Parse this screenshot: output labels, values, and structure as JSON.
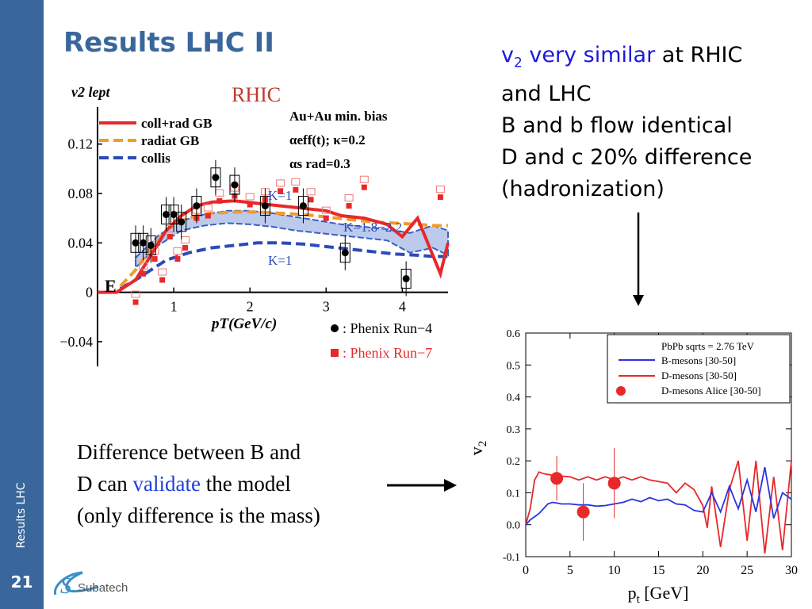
{
  "sidebar": {
    "section_label": "Results LHC",
    "page_number": "21"
  },
  "title": "Results LHC II",
  "logo": {
    "text": "Subatech",
    "mark": "S"
  },
  "notes": {
    "v": "v",
    "v_sub": "2",
    "very_similar": "very similar",
    "rest1": "at RHIC",
    "line2": "and LHC",
    "line3": "B and b flow identical",
    "line4": "D and c 20% difference",
    "line5": "(hadronization)"
  },
  "caption": {
    "line1": "Difference between B and",
    "line2_pre": "D can",
    "line2_blue": "validate",
    "line2_post": "the model",
    "line3": "(only difference is the mass)"
  },
  "colors": {
    "sidebar": "#3a679b",
    "title": "#3a679b",
    "highlight_blue": "#1a1adb",
    "red": "#e8282a",
    "orange": "#f39a2c",
    "dark_blue": "#2b4bb8"
  },
  "chart_data": [
    {
      "type": "line",
      "panel_tag": "RHIC",
      "panel_letter": "E",
      "ylabel": "v2 lept",
      "xlabel": "pT(GeV/c)",
      "xticks": [
        "1",
        "2",
        "3",
        "4"
      ],
      "yticks": [
        "0",
        "0.04",
        "0.08",
        "0.12",
        "−0.04"
      ],
      "xlim": [
        0,
        4.6
      ],
      "ylim": [
        -0.06,
        0.15
      ],
      "legend": {
        "lines": [
          "coll+rad GB",
          "radiat GB",
          "collis"
        ],
        "params": [
          "Au+Au min. bias",
          "αeff(t); κ=0.2",
          "αs rad=0.3"
        ],
        "markers": [
          ": Phenix Run−4",
          ": Phenix Run−7"
        ]
      },
      "annotations": [
        "K=1",
        "K=1.8−2.2",
        "K=1"
      ],
      "series": [
        {
          "name": "coll+rad GB",
          "color": "#e8282a",
          "x": [
            0,
            0.25,
            0.5,
            0.7,
            0.9,
            1.1,
            1.3,
            1.5,
            1.8,
            2.1,
            2.4,
            2.7,
            3.0,
            3.2,
            3.5,
            3.8,
            4.0,
            4.2,
            4.4,
            4.5,
            4.6
          ],
          "y": [
            0,
            0,
            0.01,
            0.03,
            0.05,
            0.062,
            0.07,
            0.073,
            0.074,
            0.072,
            0.07,
            0.068,
            0.066,
            0.062,
            0.06,
            0.055,
            0.045,
            0.06,
            0.03,
            0.015,
            0.04
          ]
        },
        {
          "name": "radiat GB",
          "color": "#f39a2c",
          "x": [
            0.3,
            0.5,
            0.7,
            0.9,
            1.1,
            1.3,
            1.5,
            1.8,
            2.1,
            2.4,
            2.7,
            3.0,
            3.3,
            3.6,
            3.9,
            4.2,
            4.4,
            4.6
          ],
          "y": [
            0.005,
            0.018,
            0.035,
            0.05,
            0.058,
            0.062,
            0.064,
            0.065,
            0.065,
            0.064,
            0.063,
            0.061,
            0.059,
            0.057,
            0.056,
            0.055,
            0.054,
            0.054
          ]
        },
        {
          "name": "collis",
          "color": "#2b4bb8",
          "x": [
            0.3,
            0.5,
            0.7,
            0.9,
            1.2,
            1.5,
            1.8,
            2.1,
            2.4,
            2.7,
            3.0,
            3.3,
            3.6,
            3.9,
            4.2,
            4.4,
            4.6
          ],
          "y": [
            0.003,
            0.01,
            0.018,
            0.026,
            0.032,
            0.036,
            0.038,
            0.04,
            0.04,
            0.039,
            0.037,
            0.035,
            0.033,
            0.031,
            0.03,
            0.029,
            0.029
          ]
        },
        {
          "name": "K=1.8−2.2 band",
          "color": "#3c5fc4",
          "x": [
            0.5,
            0.8,
            1.1,
            1.4,
            1.7,
            2.0,
            2.3,
            2.6,
            2.9,
            3.2,
            3.5,
            3.8,
            4.1,
            4.4,
            4.6
          ],
          "y_low": [
            0.02,
            0.038,
            0.05,
            0.054,
            0.056,
            0.055,
            0.053,
            0.05,
            0.048,
            0.046,
            0.044,
            0.042,
            0.032,
            0.036,
            0.03
          ],
          "y_high": [
            0.028,
            0.046,
            0.058,
            0.063,
            0.066,
            0.066,
            0.064,
            0.061,
            0.058,
            0.055,
            0.053,
            0.051,
            0.048,
            0.054,
            0.05
          ]
        },
        {
          "name": "Phenix Run-4",
          "color": "#000000",
          "x": [
            0.5,
            0.6,
            0.7,
            0.9,
            1.0,
            1.1,
            1.3,
            1.55,
            1.8,
            2.2,
            2.7,
            3.25,
            4.05
          ],
          "y": [
            0.04,
            0.04,
            0.038,
            0.063,
            0.063,
            0.057,
            0.07,
            0.093,
            0.087,
            0.07,
            0.07,
            0.032,
            0.011
          ]
        },
        {
          "name": "Phenix Run-7",
          "color": "#e8282a",
          "x": [
            0.5,
            0.6,
            0.75,
            0.85,
            0.95,
            1.05,
            1.15,
            1.3,
            1.45,
            1.6,
            1.8,
            2.0,
            2.2,
            2.4,
            2.6,
            2.8,
            3.0,
            3.3,
            3.5,
            4.5
          ],
          "y": [
            -0.008,
            0.015,
            0.027,
            0.01,
            0.045,
            0.027,
            0.036,
            0.06,
            0.062,
            0.074,
            0.078,
            0.071,
            0.075,
            0.082,
            0.083,
            0.075,
            0.06,
            0.07,
            0.085,
            0.077
          ]
        }
      ]
    },
    {
      "type": "line",
      "title": "PbPb sqrts = 2.76 TeV",
      "xlabel": "pt [GeV]",
      "ylabel": "v2",
      "xlim": [
        0,
        30
      ],
      "ylim": [
        -0.1,
        0.6
      ],
      "xticks": [
        "0",
        "5",
        "10",
        "15",
        "20",
        "25",
        "30"
      ],
      "yticks": [
        "-0.1",
        "0.0",
        "0.1",
        "0.2",
        "0.3",
        "0.4",
        "0.5",
        "0.6"
      ],
      "legend": {
        "position": "top-right"
      },
      "series": [
        {
          "name": "B-mesons [30-50]",
          "color": "#2b35e0",
          "x": [
            0,
            0.5,
            1,
            1.5,
            2,
            2.5,
            3,
            3.5,
            4,
            5,
            6,
            7,
            8,
            9,
            10,
            11,
            12,
            13,
            14,
            15,
            16,
            17,
            18,
            19,
            20,
            21,
            22,
            23,
            24,
            25,
            26,
            27,
            28,
            29,
            30
          ],
          "y": [
            0,
            0.015,
            0.025,
            0.035,
            0.05,
            0.065,
            0.07,
            0.068,
            0.065,
            0.065,
            0.062,
            0.062,
            0.058,
            0.06,
            0.065,
            0.07,
            0.08,
            0.072,
            0.085,
            0.075,
            0.08,
            0.065,
            0.062,
            0.045,
            0.04,
            0.1,
            0.04,
            0.12,
            0.05,
            0.14,
            0.04,
            0.18,
            0.02,
            0.1,
            0.08
          ]
        },
        {
          "name": "D-mesons [30-50]",
          "color": "#e8282a",
          "x": [
            0,
            0.5,
            1,
            1.5,
            2,
            3,
            4,
            5,
            6,
            7,
            8,
            9,
            10,
            11,
            12,
            13,
            14,
            15,
            16,
            17,
            18,
            19,
            20,
            20.5,
            21,
            22,
            23,
            24,
            25,
            26,
            27,
            28,
            29,
            30
          ],
          "y": [
            0,
            0.05,
            0.14,
            0.165,
            0.16,
            0.155,
            0.152,
            0.15,
            0.14,
            0.15,
            0.14,
            0.15,
            0.14,
            0.15,
            0.14,
            0.15,
            0.14,
            0.135,
            0.13,
            0.1,
            0.13,
            0.11,
            0.06,
            -0.01,
            0.12,
            -0.07,
            0.11,
            0.2,
            -0.05,
            0.2,
            -0.09,
            0.15,
            -0.08,
            0.2
          ]
        },
        {
          "name": "D-mesons Alice [30-50]",
          "color": "#e8282a",
          "x": [
            3.5,
            6.5,
            10
          ],
          "y": [
            0.145,
            0.04,
            0.13
          ],
          "yerr": [
            0.07,
            0.09,
            0.11
          ]
        }
      ]
    }
  ]
}
